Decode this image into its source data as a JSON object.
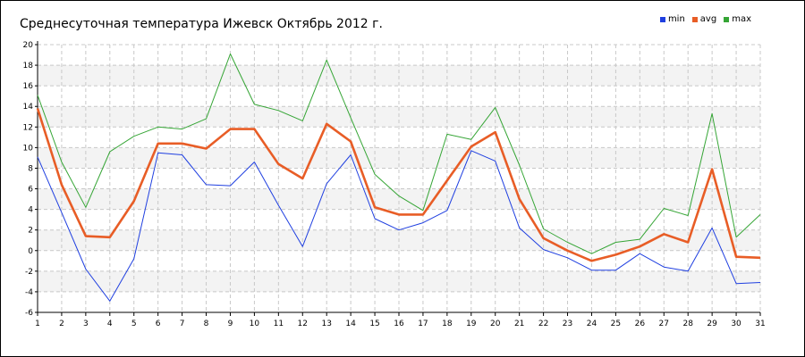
{
  "title": "Среднесуточная температура Ижевск  Октябрь 2012 г.",
  "legend": [
    {
      "label": "min",
      "color": "#1f3fe0"
    },
    {
      "label": "avg",
      "color": "#e85d26"
    },
    {
      "label": "max",
      "color": "#35a535"
    }
  ],
  "chart_data": {
    "type": "line",
    "x": [
      1,
      2,
      3,
      4,
      5,
      6,
      7,
      8,
      9,
      10,
      11,
      12,
      13,
      14,
      15,
      16,
      17,
      18,
      19,
      20,
      21,
      22,
      23,
      24,
      25,
      26,
      27,
      28,
      29,
      30,
      31
    ],
    "ylim": [
      -6,
      20
    ],
    "yticks": [
      -6,
      -4,
      -2,
      0,
      2,
      4,
      6,
      8,
      10,
      12,
      14,
      16,
      18,
      20
    ],
    "grid": true,
    "legend_position": "top-right",
    "series": [
      {
        "name": "min",
        "color": "#1f3fe0",
        "values": [
          9.1,
          3.7,
          -1.8,
          -4.9,
          -0.8,
          9.5,
          9.3,
          6.4,
          6.3,
          8.6,
          4.4,
          0.4,
          6.5,
          9.3,
          3.1,
          2.0,
          2.7,
          3.9,
          9.7,
          8.7,
          2.2,
          0.1,
          -0.7,
          -1.9,
          -1.9,
          -0.3,
          -1.6,
          -2.0,
          2.2,
          -3.2,
          -3.1
        ]
      },
      {
        "name": "avg",
        "color": "#e85d26",
        "values": [
          13.8,
          6.4,
          1.4,
          1.3,
          4.8,
          10.4,
          10.4,
          9.9,
          11.8,
          11.8,
          8.4,
          7.0,
          12.3,
          10.6,
          4.2,
          3.5,
          3.5,
          6.8,
          10.1,
          11.5,
          5.0,
          1.2,
          0.0,
          -1.0,
          -0.4,
          0.4,
          1.6,
          0.8,
          7.9,
          -0.6,
          -0.7
        ]
      },
      {
        "name": "max",
        "color": "#35a535",
        "values": [
          15.1,
          8.6,
          4.2,
          9.6,
          11.1,
          12.0,
          11.8,
          12.8,
          19.1,
          14.2,
          13.6,
          12.6,
          18.5,
          12.9,
          7.4,
          5.3,
          3.9,
          11.3,
          10.8,
          13.9,
          8.3,
          2.1,
          0.8,
          -0.3,
          0.8,
          1.1,
          4.1,
          3.4,
          13.3,
          1.3,
          3.5
        ]
      }
    ]
  }
}
